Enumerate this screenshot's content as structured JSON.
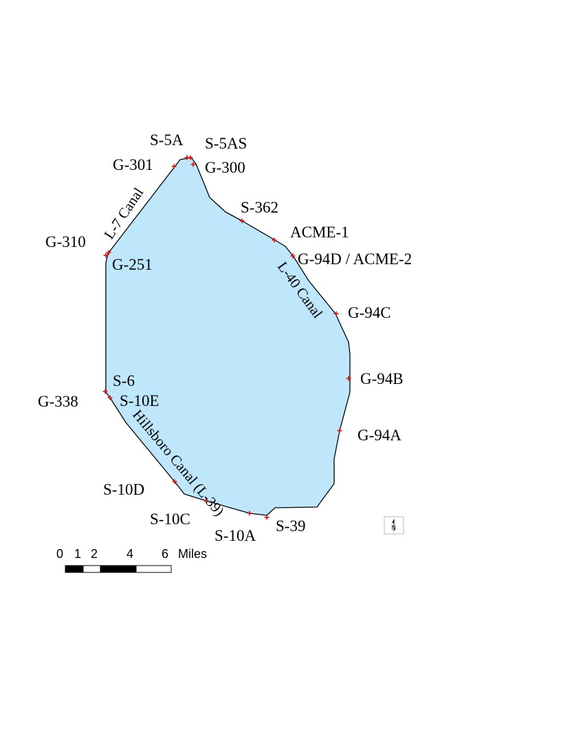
{
  "map": {
    "fill_color": "#bfe7fb",
    "outline_color": "#000000",
    "marker_color": "#e01010"
  },
  "stations": [
    {
      "id": "s-5a",
      "label": "S-5A"
    },
    {
      "id": "s-5as",
      "label": "S-5AS"
    },
    {
      "id": "g-301",
      "label": "G-301"
    },
    {
      "id": "g-300",
      "label": "G-300"
    },
    {
      "id": "s-362",
      "label": "S-362"
    },
    {
      "id": "acme-1",
      "label": "ACME-1"
    },
    {
      "id": "g-94d-acme-2",
      "label": "G-94D / ACME-2"
    },
    {
      "id": "g-310",
      "label": "G-310"
    },
    {
      "id": "g-251",
      "label": "G-251"
    },
    {
      "id": "g-94c",
      "label": "G-94C"
    },
    {
      "id": "g-94b",
      "label": "G-94B"
    },
    {
      "id": "s-6",
      "label": "S-6"
    },
    {
      "id": "g-338",
      "label": "G-338"
    },
    {
      "id": "s-10e",
      "label": "S-10E"
    },
    {
      "id": "g-94a",
      "label": "G-94A"
    },
    {
      "id": "s-10d",
      "label": "S-10D"
    },
    {
      "id": "s-10c",
      "label": "S-10C"
    },
    {
      "id": "s-10a",
      "label": "S-10A"
    },
    {
      "id": "s-39",
      "label": "S-39"
    }
  ],
  "canals": [
    {
      "id": "l-7",
      "label": "L-7 Canal"
    },
    {
      "id": "l-40",
      "label": "L-40 Canal"
    },
    {
      "id": "hillsboro",
      "label": "Hillsboro Canal (L-39)"
    }
  ],
  "scale_bar": {
    "ticks": [
      "0",
      "1",
      "2",
      "4",
      "6"
    ],
    "unit": "Miles"
  },
  "north_arrow": {
    "label": "N",
    "icon": "north-arrow-icon"
  }
}
